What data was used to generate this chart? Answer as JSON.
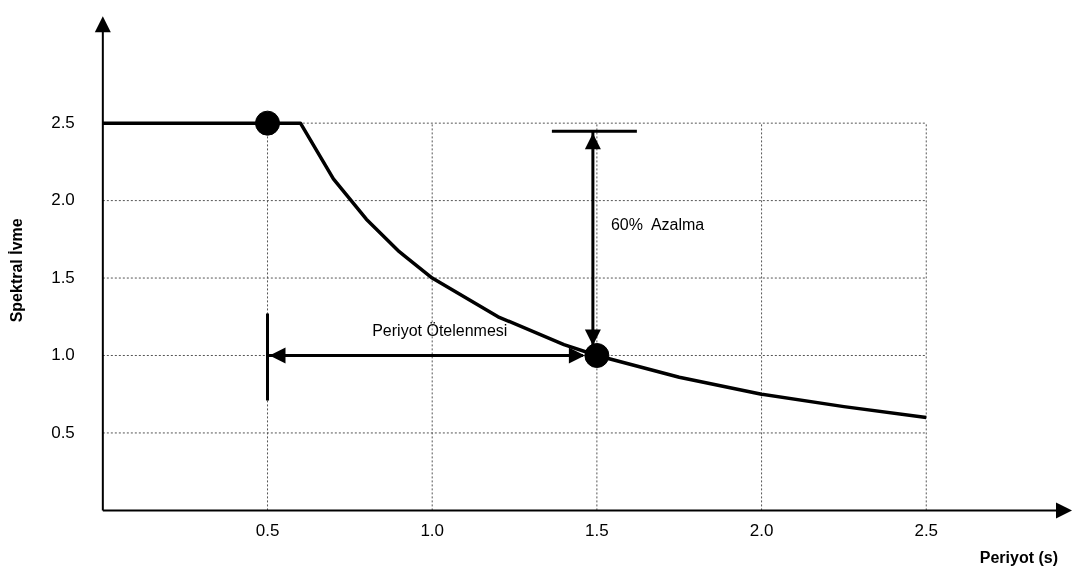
{
  "chart_data": {
    "type": "line",
    "xlabel": "Periyot (s)",
    "ylabel": "Spektral İvme",
    "xlim": [
      0,
      2.9
    ],
    "ylim": [
      0,
      3.1
    ],
    "xticks": [
      0.5,
      {
        "value": 1,
        "label": "1.0"
      },
      1.5,
      {
        "value": 2,
        "label": "2.0"
      },
      2.5
    ],
    "yticks": [
      0.5,
      {
        "value": 1,
        "label": "1.0"
      },
      1.5,
      {
        "value": 2,
        "label": "2.0"
      },
      2.5
    ],
    "grid": true,
    "legend": false,
    "series": [
      {
        "type": "line",
        "color": "#000000",
        "marker": "none",
        "line_style": "solid",
        "x": [
          0,
          0.6,
          0.7,
          0.8,
          0.9,
          1.0,
          1.2,
          1.4,
          1.5,
          1.75,
          2.0,
          2.25,
          2.5
        ],
        "values": [
          2.5,
          2.5,
          2.14,
          1.88,
          1.67,
          1.5,
          1.25,
          1.07,
          1.0,
          0.86,
          0.75,
          0.67,
          0.6
        ]
      },
      {
        "type": "scatter",
        "color": "#000000",
        "marker": "circle",
        "x": [
          0.5,
          1.5
        ],
        "values": [
          2.5,
          1.0
        ]
      }
    ],
    "annotations": [
      "Periyot Ötelenmesi",
      "60%  Azalma"
    ]
  }
}
